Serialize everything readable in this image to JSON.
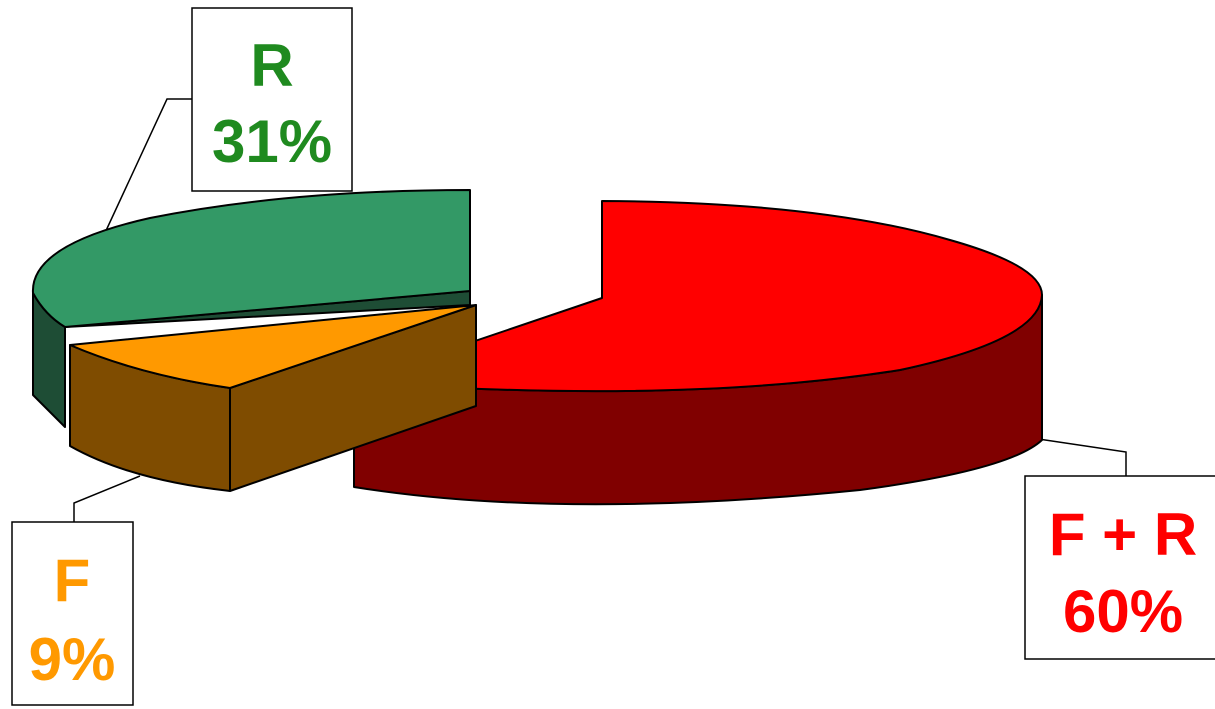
{
  "chart_data": {
    "type": "pie",
    "style": "3d-exploded",
    "slices": [
      {
        "name": "F + R",
        "value": 60,
        "label": "60%",
        "color": "#ff0000",
        "side_color": "#800000"
      },
      {
        "name": "R",
        "value": 31,
        "label": "31%",
        "color": "#339966",
        "side_color": "#1e4d35"
      },
      {
        "name": "F",
        "value": 9,
        "label": "9%",
        "color": "#ff9900",
        "side_color": "#7f4c00"
      }
    ],
    "legend": "none",
    "title": ""
  }
}
